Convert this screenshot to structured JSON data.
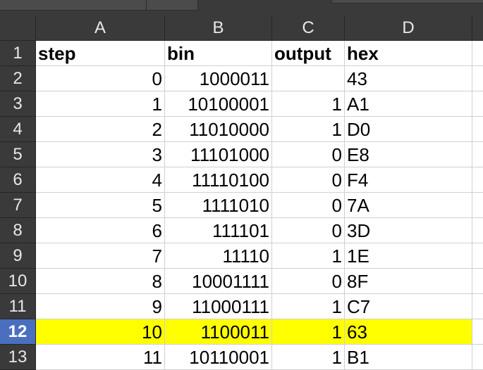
{
  "columns": [
    "A",
    "B",
    "C",
    "D"
  ],
  "headers": {
    "step": "step",
    "bin": "bin",
    "output": "output",
    "hex": "hex"
  },
  "rows": [
    {
      "row": "2",
      "step": "0",
      "bin": "1000011",
      "output": "",
      "hex": "43"
    },
    {
      "row": "3",
      "step": "1",
      "bin": "10100001",
      "output": "1",
      "hex": "A1"
    },
    {
      "row": "4",
      "step": "2",
      "bin": "11010000",
      "output": "1",
      "hex": "D0"
    },
    {
      "row": "5",
      "step": "3",
      "bin": "11101000",
      "output": "0",
      "hex": "E8"
    },
    {
      "row": "6",
      "step": "4",
      "bin": "11110100",
      "output": "0",
      "hex": "F4"
    },
    {
      "row": "7",
      "step": "5",
      "bin": "1111010",
      "output": "0",
      "hex": "7A"
    },
    {
      "row": "8",
      "step": "6",
      "bin": "111101",
      "output": "0",
      "hex": "3D"
    },
    {
      "row": "9",
      "step": "7",
      "bin": "11110",
      "output": "1",
      "hex": "1E"
    },
    {
      "row": "10",
      "step": "8",
      "bin": "10001111",
      "output": "0",
      "hex": "8F"
    },
    {
      "row": "11",
      "step": "9",
      "bin": "11000111",
      "output": "1",
      "hex": "C7"
    },
    {
      "row": "12",
      "step": "10",
      "bin": "1100011",
      "output": "1",
      "hex": "63"
    },
    {
      "row": "13",
      "step": "11",
      "bin": "10110001",
      "output": "1",
      "hex": "B1"
    }
  ],
  "header_row_number": "1",
  "active_row": "12",
  "colors": {
    "highlight": "#ffff00",
    "active_row_header": "#4a6fbf",
    "header_background": "#3a3a3a"
  }
}
